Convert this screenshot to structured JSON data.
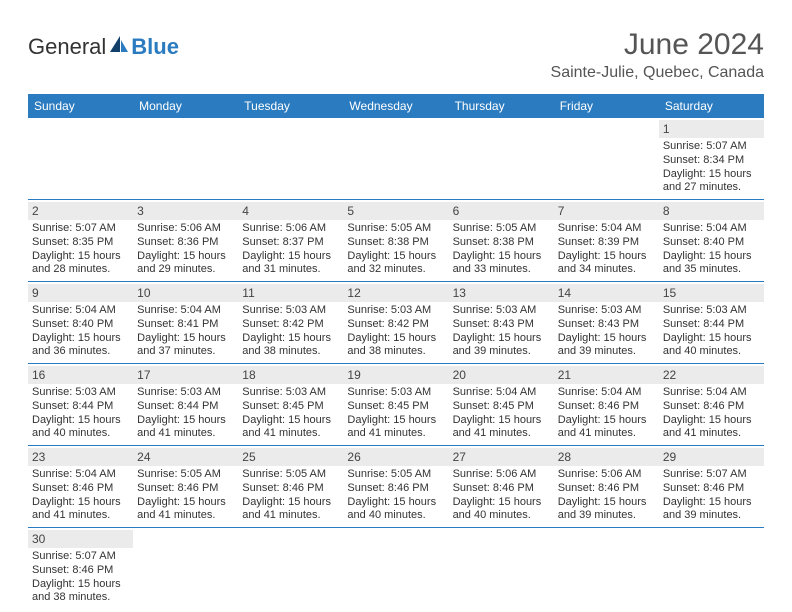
{
  "brand": {
    "part1": "General",
    "part2": "Blue"
  },
  "title": "June 2024",
  "location": "Sainte-Julie, Quebec, Canada",
  "colors": {
    "header_bg": "#2a7bbf",
    "header_text": "#ffffff",
    "daynum_bg": "#ebebeb",
    "border": "#2a7bbf",
    "text": "#333333",
    "title_text": "#555555"
  },
  "day_headers": [
    "Sunday",
    "Monday",
    "Tuesday",
    "Wednesday",
    "Thursday",
    "Friday",
    "Saturday"
  ],
  "weeks": [
    [
      null,
      null,
      null,
      null,
      null,
      null,
      {
        "n": "1",
        "sr": "Sunrise: 5:07 AM",
        "ss": "Sunset: 8:34 PM",
        "dl1": "Daylight: 15 hours",
        "dl2": "and 27 minutes."
      }
    ],
    [
      {
        "n": "2",
        "sr": "Sunrise: 5:07 AM",
        "ss": "Sunset: 8:35 PM",
        "dl1": "Daylight: 15 hours",
        "dl2": "and 28 minutes."
      },
      {
        "n": "3",
        "sr": "Sunrise: 5:06 AM",
        "ss": "Sunset: 8:36 PM",
        "dl1": "Daylight: 15 hours",
        "dl2": "and 29 minutes."
      },
      {
        "n": "4",
        "sr": "Sunrise: 5:06 AM",
        "ss": "Sunset: 8:37 PM",
        "dl1": "Daylight: 15 hours",
        "dl2": "and 31 minutes."
      },
      {
        "n": "5",
        "sr": "Sunrise: 5:05 AM",
        "ss": "Sunset: 8:38 PM",
        "dl1": "Daylight: 15 hours",
        "dl2": "and 32 minutes."
      },
      {
        "n": "6",
        "sr": "Sunrise: 5:05 AM",
        "ss": "Sunset: 8:38 PM",
        "dl1": "Daylight: 15 hours",
        "dl2": "and 33 minutes."
      },
      {
        "n": "7",
        "sr": "Sunrise: 5:04 AM",
        "ss": "Sunset: 8:39 PM",
        "dl1": "Daylight: 15 hours",
        "dl2": "and 34 minutes."
      },
      {
        "n": "8",
        "sr": "Sunrise: 5:04 AM",
        "ss": "Sunset: 8:40 PM",
        "dl1": "Daylight: 15 hours",
        "dl2": "and 35 minutes."
      }
    ],
    [
      {
        "n": "9",
        "sr": "Sunrise: 5:04 AM",
        "ss": "Sunset: 8:40 PM",
        "dl1": "Daylight: 15 hours",
        "dl2": "and 36 minutes."
      },
      {
        "n": "10",
        "sr": "Sunrise: 5:04 AM",
        "ss": "Sunset: 8:41 PM",
        "dl1": "Daylight: 15 hours",
        "dl2": "and 37 minutes."
      },
      {
        "n": "11",
        "sr": "Sunrise: 5:03 AM",
        "ss": "Sunset: 8:42 PM",
        "dl1": "Daylight: 15 hours",
        "dl2": "and 38 minutes."
      },
      {
        "n": "12",
        "sr": "Sunrise: 5:03 AM",
        "ss": "Sunset: 8:42 PM",
        "dl1": "Daylight: 15 hours",
        "dl2": "and 38 minutes."
      },
      {
        "n": "13",
        "sr": "Sunrise: 5:03 AM",
        "ss": "Sunset: 8:43 PM",
        "dl1": "Daylight: 15 hours",
        "dl2": "and 39 minutes."
      },
      {
        "n": "14",
        "sr": "Sunrise: 5:03 AM",
        "ss": "Sunset: 8:43 PM",
        "dl1": "Daylight: 15 hours",
        "dl2": "and 39 minutes."
      },
      {
        "n": "15",
        "sr": "Sunrise: 5:03 AM",
        "ss": "Sunset: 8:44 PM",
        "dl1": "Daylight: 15 hours",
        "dl2": "and 40 minutes."
      }
    ],
    [
      {
        "n": "16",
        "sr": "Sunrise: 5:03 AM",
        "ss": "Sunset: 8:44 PM",
        "dl1": "Daylight: 15 hours",
        "dl2": "and 40 minutes."
      },
      {
        "n": "17",
        "sr": "Sunrise: 5:03 AM",
        "ss": "Sunset: 8:44 PM",
        "dl1": "Daylight: 15 hours",
        "dl2": "and 41 minutes."
      },
      {
        "n": "18",
        "sr": "Sunrise: 5:03 AM",
        "ss": "Sunset: 8:45 PM",
        "dl1": "Daylight: 15 hours",
        "dl2": "and 41 minutes."
      },
      {
        "n": "19",
        "sr": "Sunrise: 5:03 AM",
        "ss": "Sunset: 8:45 PM",
        "dl1": "Daylight: 15 hours",
        "dl2": "and 41 minutes."
      },
      {
        "n": "20",
        "sr": "Sunrise: 5:04 AM",
        "ss": "Sunset: 8:45 PM",
        "dl1": "Daylight: 15 hours",
        "dl2": "and 41 minutes."
      },
      {
        "n": "21",
        "sr": "Sunrise: 5:04 AM",
        "ss": "Sunset: 8:46 PM",
        "dl1": "Daylight: 15 hours",
        "dl2": "and 41 minutes."
      },
      {
        "n": "22",
        "sr": "Sunrise: 5:04 AM",
        "ss": "Sunset: 8:46 PM",
        "dl1": "Daylight: 15 hours",
        "dl2": "and 41 minutes."
      }
    ],
    [
      {
        "n": "23",
        "sr": "Sunrise: 5:04 AM",
        "ss": "Sunset: 8:46 PM",
        "dl1": "Daylight: 15 hours",
        "dl2": "and 41 minutes."
      },
      {
        "n": "24",
        "sr": "Sunrise: 5:05 AM",
        "ss": "Sunset: 8:46 PM",
        "dl1": "Daylight: 15 hours",
        "dl2": "and 41 minutes."
      },
      {
        "n": "25",
        "sr": "Sunrise: 5:05 AM",
        "ss": "Sunset: 8:46 PM",
        "dl1": "Daylight: 15 hours",
        "dl2": "and 41 minutes."
      },
      {
        "n": "26",
        "sr": "Sunrise: 5:05 AM",
        "ss": "Sunset: 8:46 PM",
        "dl1": "Daylight: 15 hours",
        "dl2": "and 40 minutes."
      },
      {
        "n": "27",
        "sr": "Sunrise: 5:06 AM",
        "ss": "Sunset: 8:46 PM",
        "dl1": "Daylight: 15 hours",
        "dl2": "and 40 minutes."
      },
      {
        "n": "28",
        "sr": "Sunrise: 5:06 AM",
        "ss": "Sunset: 8:46 PM",
        "dl1": "Daylight: 15 hours",
        "dl2": "and 39 minutes."
      },
      {
        "n": "29",
        "sr": "Sunrise: 5:07 AM",
        "ss": "Sunset: 8:46 PM",
        "dl1": "Daylight: 15 hours",
        "dl2": "and 39 minutes."
      }
    ],
    [
      {
        "n": "30",
        "sr": "Sunrise: 5:07 AM",
        "ss": "Sunset: 8:46 PM",
        "dl1": "Daylight: 15 hours",
        "dl2": "and 38 minutes."
      },
      null,
      null,
      null,
      null,
      null,
      null
    ]
  ]
}
